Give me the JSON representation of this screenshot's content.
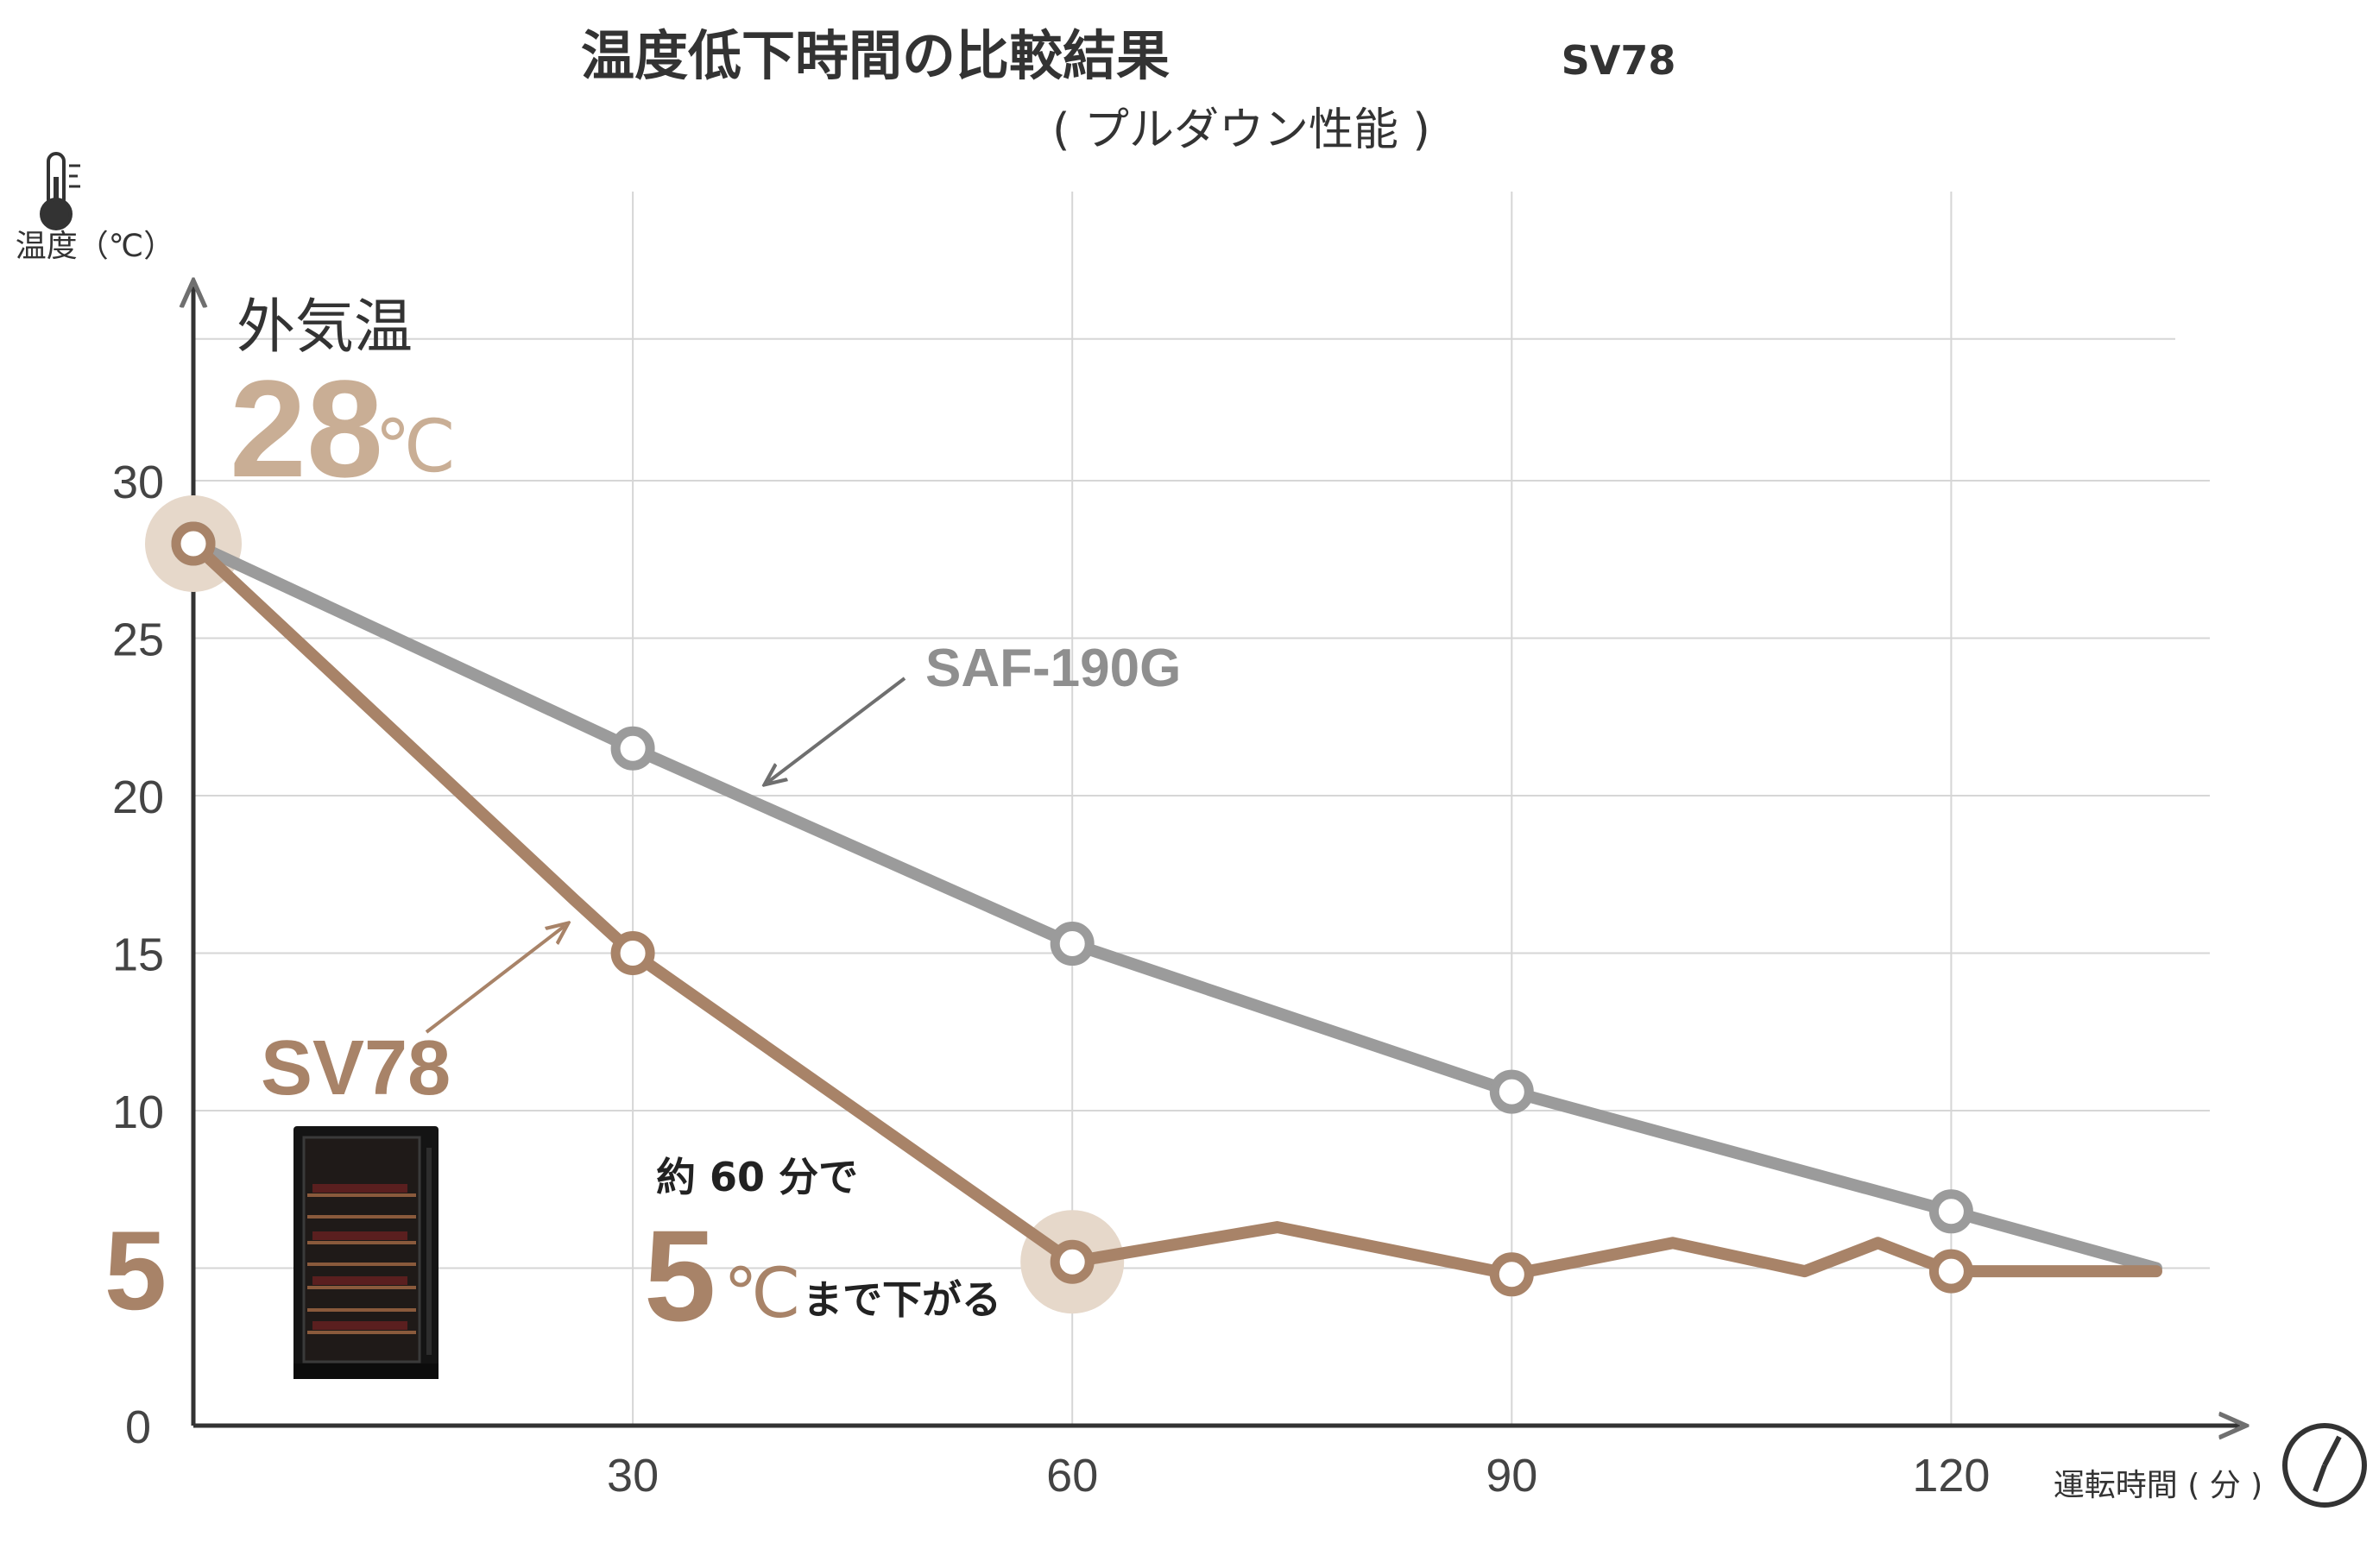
{
  "header": {
    "title": "温度低下時間の比較結果",
    "model": "SV78",
    "subtitle": "( プルダウン性能 )"
  },
  "axes": {
    "ylabel": "温度（℃）",
    "xlabel": "運転時間 ( 分 )",
    "y_ticks": [
      "0",
      "5",
      "10",
      "15",
      "20",
      "25",
      "30"
    ],
    "x_ticks": [
      "30",
      "60",
      "90",
      "120"
    ]
  },
  "annotations": {
    "ambient_label": "外気温",
    "ambient_value": "28",
    "ambient_unit": "℃",
    "sv78_label": "SV78",
    "saf_label": "SAF-190G",
    "note_line1": "約 60 分で",
    "note_value": "5",
    "note_unit": "℃",
    "note_line2": "まで下がる",
    "y_highlight": "5"
  },
  "icons": {
    "y_axis": "thermometer-icon",
    "x_axis": "clock-icon"
  },
  "colors": {
    "sv78": "#a88368",
    "saf": "#9b9b9b",
    "ambient": "#c9ae95",
    "highlight": "#e6d8ca",
    "grid": "#d6d6d6",
    "axis": "#333333"
  },
  "chart_data": {
    "type": "line",
    "title": "温度低下時間の比較結果",
    "xlabel": "運転時間 ( 分 )",
    "ylabel": "温度（℃）",
    "xlim": [
      0,
      135
    ],
    "ylim": [
      0,
      35
    ],
    "x_ticks": [
      30,
      60,
      90,
      120
    ],
    "y_ticks": [
      0,
      5,
      10,
      15,
      20,
      25,
      30
    ],
    "grid": true,
    "series": [
      {
        "name": "SAF-190G",
        "color": "#9b9b9b",
        "points": [
          [
            0,
            28
          ],
          [
            30,
            21.5
          ],
          [
            60,
            15.3
          ],
          [
            90,
            10.6
          ],
          [
            120,
            6.8
          ],
          [
            134,
            5
          ]
        ],
        "markers": [
          [
            0,
            28
          ],
          [
            30,
            21.5
          ],
          [
            60,
            15.3
          ],
          [
            90,
            10.6
          ],
          [
            120,
            6.8
          ]
        ]
      },
      {
        "name": "SV78",
        "color": "#a88368",
        "points": [
          [
            0,
            28
          ],
          [
            26,
            16.7
          ],
          [
            30,
            15
          ],
          [
            60,
            5.2
          ],
          [
            74,
            6.3
          ],
          [
            90,
            4.8
          ],
          [
            101,
            5.8
          ],
          [
            110,
            4.9
          ],
          [
            115,
            5.8
          ],
          [
            120,
            4.9
          ],
          [
            134,
            4.9
          ]
        ],
        "markers": [
          [
            0,
            28
          ],
          [
            30,
            15
          ],
          [
            60,
            5.2
          ],
          [
            90,
            4.8
          ],
          [
            120,
            4.9
          ]
        ]
      }
    ]
  }
}
